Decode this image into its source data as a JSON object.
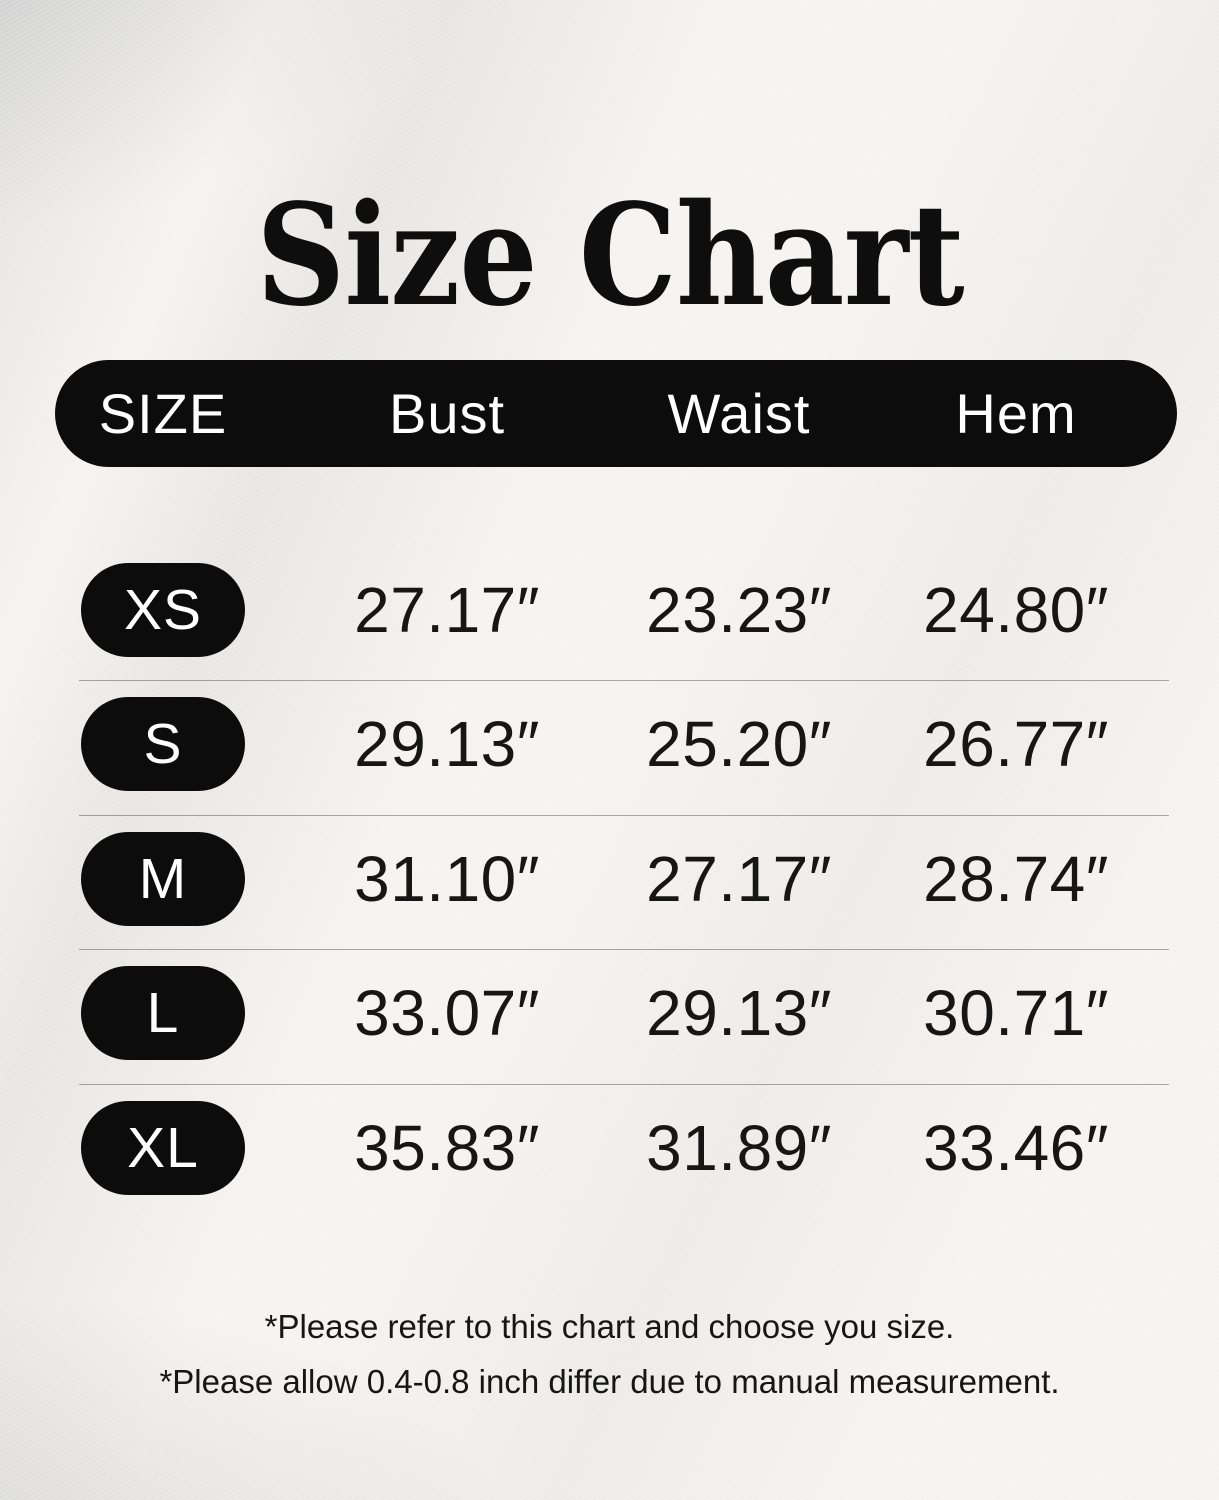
{
  "title": "Size Chart",
  "chart_data": {
    "type": "table",
    "title": "Size Chart",
    "columns": [
      "SIZE",
      "Bust",
      "Waist",
      "Hem"
    ],
    "rows": [
      [
        "XS",
        "27.17″",
        "23.23″",
        "24.80″"
      ],
      [
        "S",
        "29.13″",
        "25.20″",
        "26.77″"
      ],
      [
        "M",
        "31.10″",
        "27.17″",
        "28.74″"
      ],
      [
        "L",
        "33.07″",
        "29.13″",
        "30.71″"
      ],
      [
        "XL",
        "35.83″",
        "31.89″",
        "33.46″"
      ]
    ],
    "unit": "inches"
  },
  "notes": [
    "*Please refer to this chart and choose you size.",
    "*Please allow 0.4-0.8 inch differ due to manual measurement."
  ],
  "colors": {
    "background": "#f5f4f2",
    "ink": "#0e0e0e",
    "pill_fill": "#0c0c0c",
    "pill_text": "#ffffff",
    "divider": "#707070"
  }
}
